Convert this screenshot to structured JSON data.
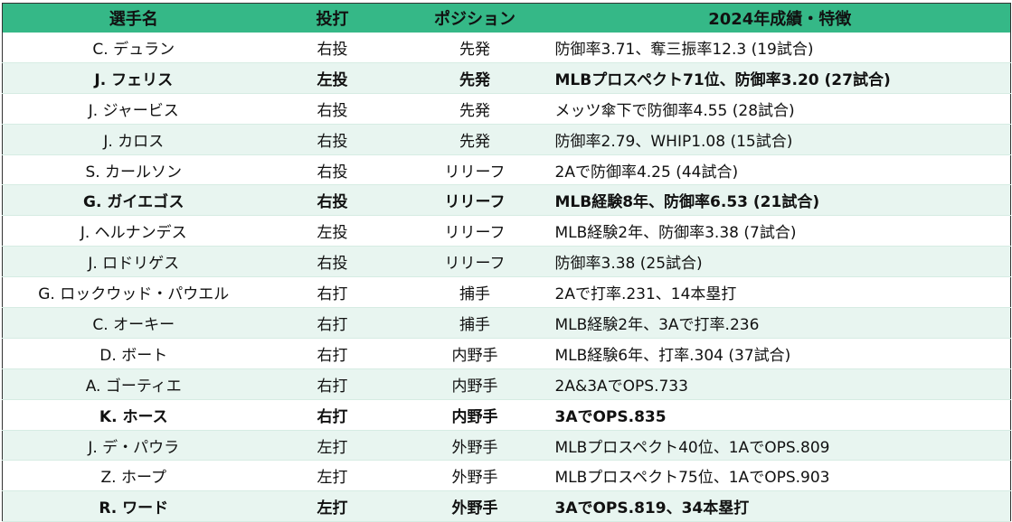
{
  "header": {
    "name": "選手名",
    "throw_bat": "投打",
    "position": "ポジション",
    "stats": "2024年成績・特徴"
  },
  "rows": [
    {
      "name": "C. デュラン",
      "throw_bat": "右投",
      "position": "先発",
      "stats": "防御率3.71、奪三振率12.3 (19試合)",
      "bold": false
    },
    {
      "name": "J. フェリス",
      "throw_bat": "左投",
      "position": "先発",
      "stats": "MLBプロスペクト71位、防御率3.20 (27試合)",
      "bold": true
    },
    {
      "name": "J. ジャービス",
      "throw_bat": "右投",
      "position": "先発",
      "stats": "メッツ傘下で防御率4.55 (28試合)",
      "bold": false
    },
    {
      "name": "J. カロス",
      "throw_bat": "右投",
      "position": "先発",
      "stats": "防御率2.79、WHIP1.08 (15試合)",
      "bold": false
    },
    {
      "name": "S. カールソン",
      "throw_bat": "右投",
      "position": "リリーフ",
      "stats": "2Aで防御率4.25 (44試合)",
      "bold": false
    },
    {
      "name": "G. ガイエゴス",
      "throw_bat": "右投",
      "position": "リリーフ",
      "stats": "MLB経験8年、防御率6.53 (21試合)",
      "bold": true
    },
    {
      "name": "J. ヘルナンデス",
      "throw_bat": "左投",
      "position": "リリーフ",
      "stats": "MLB経験2年、防御率3.38 (7試合)",
      "bold": false
    },
    {
      "name": "J. ロドリゲス",
      "throw_bat": "右投",
      "position": "リリーフ",
      "stats": "防御率3.38 (25試合)",
      "bold": false
    },
    {
      "name": "G. ロックウッド・パウエル",
      "throw_bat": "右打",
      "position": "捕手",
      "stats": "2Aで打率.231、14本塁打",
      "bold": false
    },
    {
      "name": "C. オーキー",
      "throw_bat": "右打",
      "position": "捕手",
      "stats": "MLB経験2年、3Aで打率.236",
      "bold": false
    },
    {
      "name": "D. ボート",
      "throw_bat": "右打",
      "position": "内野手",
      "stats": "MLB経験6年、打率.304 (37試合)",
      "bold": false
    },
    {
      "name": "A. ゴーティエ",
      "throw_bat": "右打",
      "position": "内野手",
      "stats": "2A&3AでOPS.733",
      "bold": false
    },
    {
      "name": "K. ホース",
      "throw_bat": "右打",
      "position": "内野手",
      "stats": "3AでOPS.835",
      "bold": true
    },
    {
      "name": "J. デ・パウラ",
      "throw_bat": "左打",
      "position": "外野手",
      "stats": "MLBプロスペクト40位、1AでOPS.809",
      "bold": false
    },
    {
      "name": "Z. ホープ",
      "throw_bat": "左打",
      "position": "外野手",
      "stats": "MLBプロスペクト75位、1AでOPS.903",
      "bold": false
    },
    {
      "name": "R. ワード",
      "throw_bat": "左打",
      "position": "外野手",
      "stats": "3AでOPS.819、34本塁打",
      "bold": true
    }
  ],
  "colors": {
    "header_bg": "#35b887",
    "stripe_bg": "#e8f5f0",
    "border": "#333333"
  }
}
